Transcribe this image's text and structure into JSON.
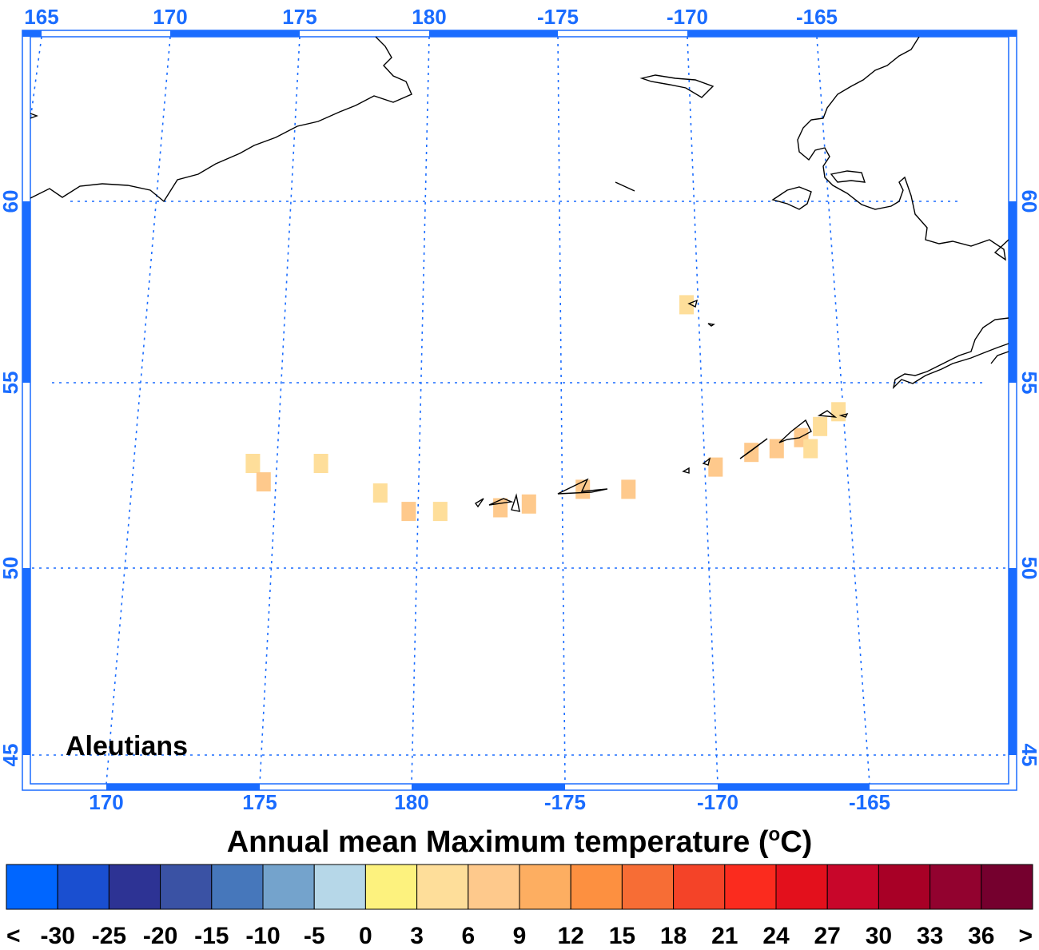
{
  "map": {
    "region_label": "Aleutians",
    "top_lon_labels": [
      "165",
      "170",
      "175",
      "180",
      "-175",
      "-170",
      "-165"
    ],
    "bottom_lon_labels": [
      "170",
      "175",
      "180",
      "-175",
      "-170",
      "-165"
    ],
    "lat_labels": [
      "60",
      "55",
      "50",
      "45"
    ],
    "frame_color": "#1a6cff",
    "grid_color": "#1a6cff",
    "data_cells": [
      {
        "lon": 173.8,
        "lat": 52.9,
        "value": 4
      },
      {
        "lon": 176.2,
        "lat": 52.9,
        "value": 5
      },
      {
        "lon": 174.2,
        "lat": 52.4,
        "value": 7
      },
      {
        "lon": 178.3,
        "lat": 52.1,
        "value": 5
      },
      {
        "lon": 179.3,
        "lat": 51.6,
        "value": 7
      },
      {
        "lon": -179.6,
        "lat": 51.6,
        "value": 4
      },
      {
        "lon": -177.5,
        "lat": 51.7,
        "value": 7
      },
      {
        "lon": -176.5,
        "lat": 51.8,
        "value": 8
      },
      {
        "lon": -174.6,
        "lat": 52.2,
        "value": 6
      },
      {
        "lon": -173.0,
        "lat": 52.2,
        "value": 7
      },
      {
        "lon": -170.6,
        "lat": 57.2,
        "value": 5
      },
      {
        "lon": -169.9,
        "lat": 52.8,
        "value": 8
      },
      {
        "lon": -168.6,
        "lat": 53.2,
        "value": 8
      },
      {
        "lon": -167.7,
        "lat": 53.3,
        "value": 8
      },
      {
        "lon": -166.8,
        "lat": 53.6,
        "value": 8
      },
      {
        "lon": -166.1,
        "lat": 53.9,
        "value": 5
      },
      {
        "lon": -166.5,
        "lat": 53.3,
        "value": 4
      },
      {
        "lon": -165.4,
        "lat": 54.3,
        "value": 5
      }
    ]
  },
  "title": {
    "text": "Annual mean Maximum temperature (",
    "superscript": "o",
    "unit": "C)"
  },
  "colorbar": {
    "colors": [
      "#0066ff",
      "#1a4fd0",
      "#2d3394",
      "#3a52a4",
      "#4677bb",
      "#74a3cc",
      "#b6d7e8",
      "#fdf27e",
      "#fede9a",
      "#fec98c",
      "#fdae61",
      "#fd9040",
      "#f76d35",
      "#f44328",
      "#fb2b1e",
      "#e3101c",
      "#c8062a",
      "#a80026",
      "#92022f",
      "#75002e"
    ],
    "labels": [
      "<",
      "-30",
      "-25",
      "-20",
      "-15",
      "-10",
      "-5",
      "0",
      "3",
      "6",
      "9",
      "12",
      "15",
      "18",
      "21",
      "24",
      "27",
      "30",
      "33",
      "36",
      ">"
    ]
  }
}
